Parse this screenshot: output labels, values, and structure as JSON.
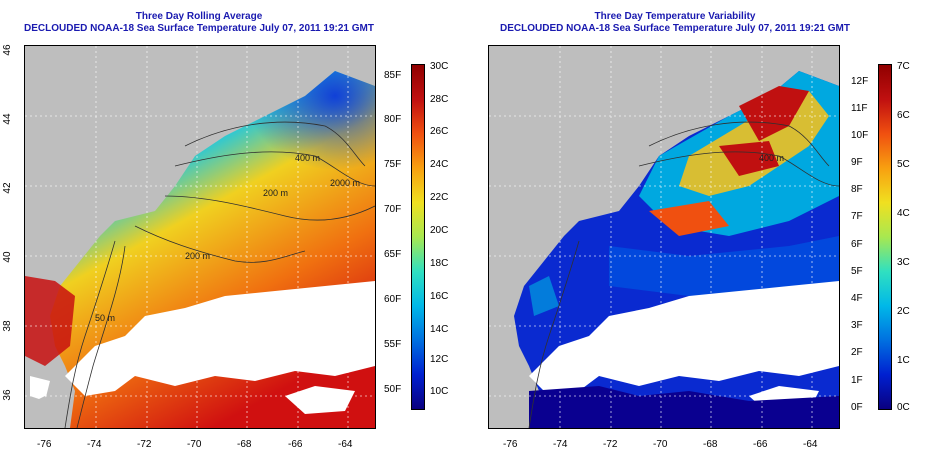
{
  "panels": [
    {
      "title": "Three Day Rolling Average",
      "subtitle": "DECLOUDED NOAA-18 Sea Surface Temperature July 07, 2011 19:21 GMT",
      "x_ticks": [
        "-76",
        "-74",
        "-72",
        "-70",
        "-68",
        "-66",
        "-64"
      ],
      "y_ticks": [
        "46",
        "44",
        "42",
        "40",
        "38",
        "36"
      ],
      "contour_labels": [
        "400 m",
        "2000 m",
        "200 m",
        "200 m",
        "50 m"
      ],
      "colorbar": {
        "colors": [
          "#0a0080",
          "#0020d0",
          "#0070e0",
          "#00b8e8",
          "#30e0c0",
          "#a8e850",
          "#f0e020",
          "#f8a010",
          "#f05010",
          "#c01010",
          "#900000"
        ],
        "left_labels": [
          "85F",
          "80F",
          "75F",
          "70F",
          "65F",
          "60F",
          "55F",
          "50F"
        ],
        "right_labels": [
          "30C",
          "28C",
          "26C",
          "24C",
          "22C",
          "20C",
          "18C",
          "16C",
          "14C",
          "12C",
          "10C"
        ]
      }
    },
    {
      "title": "Three Day Temperature Variability",
      "subtitle": "DECLOUDED NOAA-18 Sea Surface Temperature July 07, 2011 19:21 GMT",
      "x_ticks": [
        "-76",
        "-74",
        "-72",
        "-70",
        "-68",
        "-66",
        "-64"
      ],
      "y_ticks": [],
      "contour_labels": [
        "400 m"
      ],
      "colorbar": {
        "colors": [
          "#0a0080",
          "#0020d0",
          "#0070e0",
          "#00b8e8",
          "#30e0c0",
          "#a8e850",
          "#f0e020",
          "#f8a010",
          "#f05010",
          "#c01010",
          "#900000"
        ],
        "left_labels": [
          "12F",
          "11F",
          "10F",
          "9F",
          "8F",
          "7F",
          "6F",
          "5F",
          "4F",
          "3F",
          "2F",
          "1F",
          "0F"
        ],
        "right_labels": [
          "7C",
          "6C",
          "5C",
          "4C",
          "3C",
          "2C",
          "1C",
          "0C"
        ]
      }
    }
  ]
}
